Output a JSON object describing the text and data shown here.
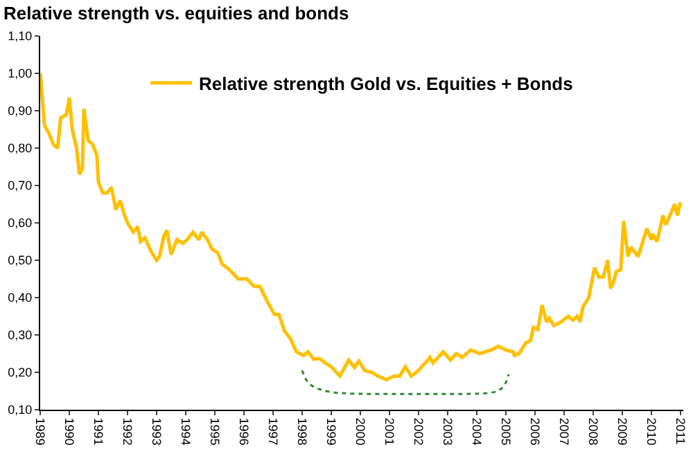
{
  "chart_data": {
    "type": "line",
    "title": "Relative strength vs. equities and bonds",
    "x": [
      1989.0,
      1989.15,
      1989.3,
      1989.45,
      1989.6,
      1989.7,
      1989.9,
      1990.0,
      1990.1,
      1990.25,
      1990.35,
      1990.45,
      1990.5,
      1990.65,
      1990.8,
      1990.95,
      1991.0,
      1991.15,
      1991.3,
      1991.45,
      1991.6,
      1991.75,
      1991.9,
      1992.0,
      1992.2,
      1992.35,
      1992.45,
      1992.6,
      1992.8,
      1993.0,
      1993.1,
      1993.25,
      1993.35,
      1993.5,
      1993.7,
      1993.9,
      1994.05,
      1994.25,
      1994.45,
      1994.55,
      1994.75,
      1994.9,
      1995.1,
      1995.25,
      1995.5,
      1995.8,
      1996.1,
      1996.35,
      1996.55,
      1996.8,
      1997.05,
      1997.2,
      1997.4,
      1997.6,
      1997.8,
      1998.05,
      1998.2,
      1998.4,
      1998.6,
      1998.8,
      1999.0,
      1999.3,
      1999.6,
      1999.8,
      1999.95,
      2000.15,
      2000.4,
      2000.6,
      2000.9,
      2001.15,
      2001.35,
      2001.55,
      2001.75,
      2002.0,
      2002.4,
      2002.5,
      2002.85,
      2003.1,
      2003.3,
      2003.5,
      2003.8,
      2004.1,
      2004.5,
      2004.75,
      2005.0,
      2005.25,
      2005.3,
      2005.45,
      2005.7,
      2005.85,
      2005.95,
      2006.1,
      2006.25,
      2006.4,
      2006.5,
      2006.65,
      2006.9,
      2007.15,
      2007.3,
      2007.45,
      2007.55,
      2007.65,
      2007.85,
      2008.05,
      2008.2,
      2008.35,
      2008.5,
      2008.6,
      2008.7,
      2008.8,
      2008.95,
      2009.05,
      2009.2,
      2009.3,
      2009.55,
      2009.85,
      2010.0,
      2010.05,
      2010.2,
      2010.4,
      2010.5,
      2010.7,
      2010.8,
      2010.9,
      2011.0
    ],
    "series": [
      {
        "name": "Relative strength Gold vs. Equities + Bonds",
        "color": "#ffc000",
        "values": [
          1.0,
          0.86,
          0.84,
          0.81,
          0.8,
          0.88,
          0.89,
          0.935,
          0.85,
          0.8,
          0.73,
          0.745,
          0.905,
          0.82,
          0.81,
          0.78,
          0.71,
          0.68,
          0.68,
          0.695,
          0.635,
          0.66,
          0.62,
          0.6,
          0.575,
          0.59,
          0.55,
          0.56,
          0.525,
          0.5,
          0.51,
          0.565,
          0.58,
          0.515,
          0.555,
          0.545,
          0.555,
          0.575,
          0.555,
          0.575,
          0.555,
          0.53,
          0.52,
          0.49,
          0.475,
          0.45,
          0.45,
          0.43,
          0.43,
          0.39,
          0.355,
          0.355,
          0.31,
          0.29,
          0.255,
          0.245,
          0.255,
          0.235,
          0.237,
          0.225,
          0.215,
          0.19,
          0.233,
          0.213,
          0.23,
          0.205,
          0.2,
          0.19,
          0.18,
          0.19,
          0.19,
          0.215,
          0.19,
          0.205,
          0.24,
          0.225,
          0.255,
          0.233,
          0.25,
          0.24,
          0.26,
          0.25,
          0.26,
          0.27,
          0.26,
          0.255,
          0.245,
          0.25,
          0.28,
          0.285,
          0.32,
          0.315,
          0.38,
          0.335,
          0.345,
          0.325,
          0.335,
          0.35,
          0.34,
          0.35,
          0.335,
          0.375,
          0.4,
          0.48,
          0.455,
          0.455,
          0.5,
          0.425,
          0.44,
          0.47,
          0.475,
          0.605,
          0.51,
          0.535,
          0.51,
          0.585,
          0.555,
          0.57,
          0.55,
          0.62,
          0.595,
          0.63,
          0.65,
          0.62,
          0.655
        ]
      },
      {
        "type": "line",
        "color": "#2e8b2e",
        "line_style": "dotted",
        "x": [
          1998.0,
          1998.1,
          1998.25,
          1998.5,
          1998.8,
          1999.2,
          1999.7,
          2000.5,
          2001.5,
          2002.5,
          2003.5,
          2004.2,
          2004.6,
          2004.85,
          2005.0,
          2005.1
        ],
        "values": [
          0.205,
          0.185,
          0.168,
          0.157,
          0.15,
          0.145,
          0.143,
          0.142,
          0.142,
          0.142,
          0.142,
          0.143,
          0.147,
          0.156,
          0.172,
          0.195
        ]
      }
    ],
    "xlim": [
      1989,
      2011.1
    ],
    "xticks": [
      1989,
      1990,
      1991,
      1992,
      1993,
      1994,
      1995,
      1996,
      1997,
      1998,
      1999,
      2000,
      2001,
      2002,
      2003,
      2004,
      2005,
      2006,
      2007,
      2008,
      2009,
      2010,
      2011
    ],
    "ylim": [
      0.1,
      1.1
    ],
    "yticks": [
      {
        "value": 0.1,
        "label": "0,10"
      },
      {
        "value": 0.2,
        "label": "0,20"
      },
      {
        "value": 0.3,
        "label": "0,30"
      },
      {
        "value": 0.4,
        "label": "0,40"
      },
      {
        "value": 0.5,
        "label": "0,50"
      },
      {
        "value": 0.6,
        "label": "0,60"
      },
      {
        "value": 0.7,
        "label": "0,70"
      },
      {
        "value": 0.8,
        "label": "0,80"
      },
      {
        "value": 0.9,
        "label": "0,90"
      },
      {
        "value": 1.0,
        "label": "1,00"
      },
      {
        "value": 1.1,
        "label": "1,10"
      }
    ],
    "grid": false,
    "legend": "top",
    "marker": "none",
    "line_style": "solid"
  }
}
